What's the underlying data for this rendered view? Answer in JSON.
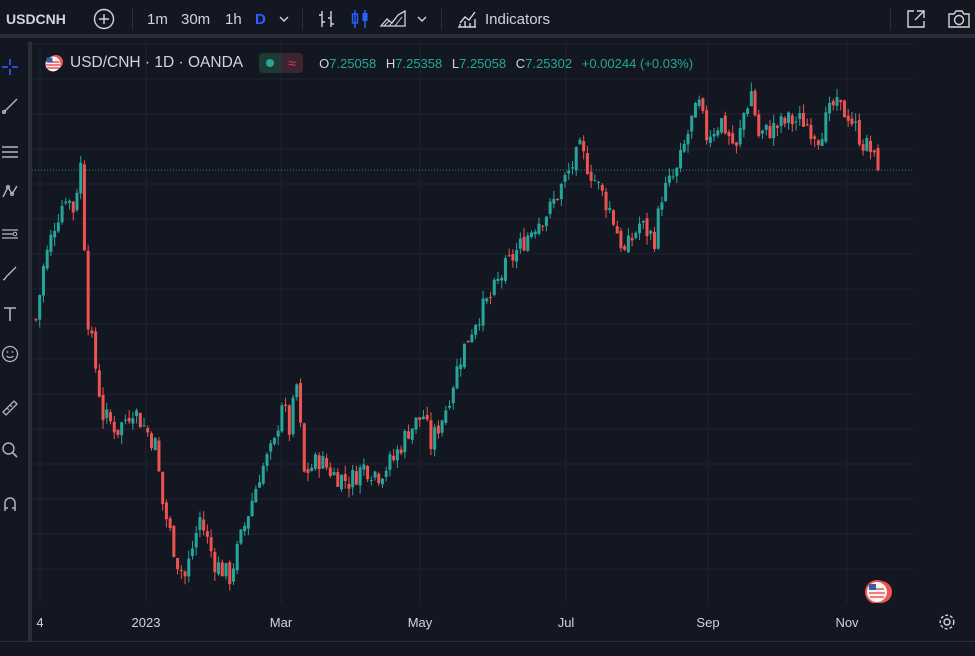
{
  "toolbar": {
    "symbol": "USDCNH",
    "intervals": [
      "1m",
      "30m",
      "1h",
      "D"
    ],
    "active_interval": "D",
    "indicators_label": "Indicators"
  },
  "legend": {
    "title": "USD/CNH · 1D · OANDA",
    "open_label": "O",
    "open": "7.25058",
    "high_label": "H",
    "high": "7.25358",
    "low_label": "L",
    "low": "7.25058",
    "close_label": "C",
    "close": "7.25302",
    "change": "+0.00244 (+0.03%)"
  },
  "xaxis": {
    "labels": [
      "4",
      "2023",
      "Mar",
      "May",
      "Jul",
      "Sep",
      "Nov"
    ]
  },
  "colors": {
    "up": "#26a69a",
    "down": "#ef5350",
    "bg": "#131722",
    "grid": "#1f2330",
    "accent": "#2962ff"
  },
  "chart_data": {
    "type": "candlestick",
    "symbol": "USD/CNH",
    "timeframe": "1D",
    "source": "OANDA",
    "x_labels": [
      "4",
      "2023",
      "Mar",
      "May",
      "Jul",
      "Sep",
      "Nov"
    ],
    "ylim": [
      6.7,
      7.4
    ],
    "grid": true,
    "last_price": 7.25302,
    "path": [
      [
        0,
        7.05
      ],
      [
        2,
        7.12
      ],
      [
        5,
        7.18
      ],
      [
        8,
        7.22
      ],
      [
        10,
        7.2
      ],
      [
        12,
        7.26
      ],
      [
        14,
        7.05
      ],
      [
        18,
        6.92
      ],
      [
        22,
        6.9
      ],
      [
        26,
        6.93
      ],
      [
        32,
        6.88
      ],
      [
        34,
        6.8
      ],
      [
        38,
        6.72
      ],
      [
        40,
        6.7
      ],
      [
        44,
        6.78
      ],
      [
        48,
        6.72
      ],
      [
        52,
        6.7
      ],
      [
        56,
        6.77
      ],
      [
        60,
        6.84
      ],
      [
        64,
        6.88
      ],
      [
        66,
        6.94
      ],
      [
        68,
        6.9
      ],
      [
        70,
        6.96
      ],
      [
        72,
        6.84
      ],
      [
        76,
        6.86
      ],
      [
        80,
        6.84
      ],
      [
        84,
        6.83
      ],
      [
        88,
        6.85
      ],
      [
        92,
        6.84
      ],
      [
        96,
        6.86
      ],
      [
        100,
        6.9
      ],
      [
        104,
        6.92
      ],
      [
        106,
        6.88
      ],
      [
        110,
        6.93
      ],
      [
        114,
        7.0
      ],
      [
        118,
        7.05
      ],
      [
        122,
        7.08
      ],
      [
        126,
        7.12
      ],
      [
        130,
        7.15
      ],
      [
        134,
        7.18
      ],
      [
        138,
        7.2
      ],
      [
        142,
        7.24
      ],
      [
        146,
        7.28
      ],
      [
        150,
        7.24
      ],
      [
        154,
        7.2
      ],
      [
        158,
        7.14
      ],
      [
        162,
        7.18
      ],
      [
        166,
        7.16
      ],
      [
        168,
        7.22
      ],
      [
        172,
        7.25
      ],
      [
        176,
        7.32
      ],
      [
        178,
        7.34
      ],
      [
        180,
        7.3
      ],
      [
        184,
        7.32
      ],
      [
        188,
        7.28
      ],
      [
        190,
        7.33
      ],
      [
        192,
        7.36
      ],
      [
        194,
        7.3
      ],
      [
        198,
        7.31
      ],
      [
        202,
        7.32
      ],
      [
        206,
        7.32
      ],
      [
        210,
        7.3
      ],
      [
        214,
        7.34
      ],
      [
        218,
        7.33
      ],
      [
        220,
        7.31
      ],
      [
        222,
        7.29
      ],
      [
        224,
        7.28
      ],
      [
        226,
        7.25
      ]
    ]
  }
}
